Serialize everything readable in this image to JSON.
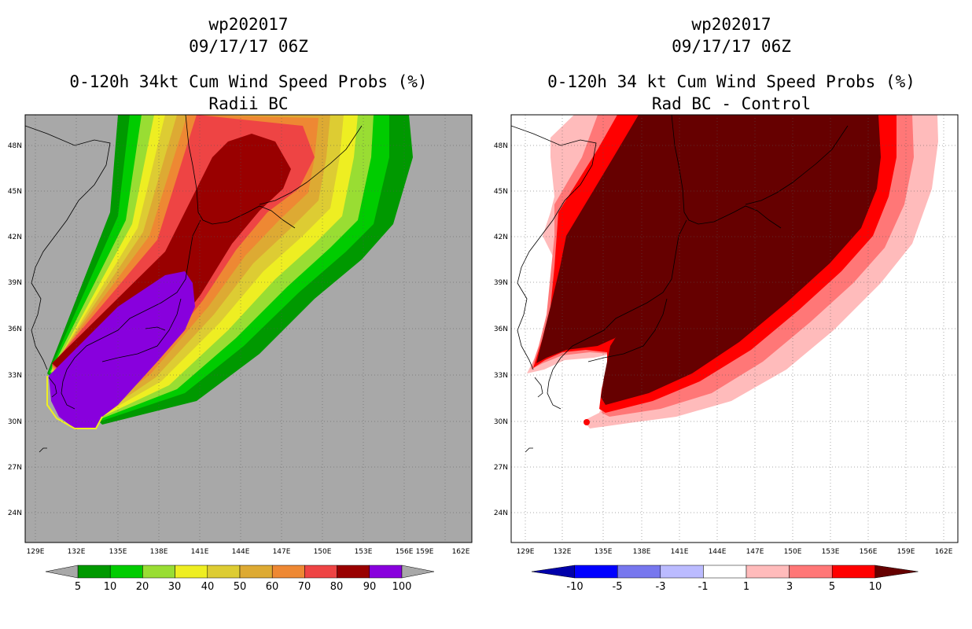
{
  "left_panel": {
    "storm_id": "wp202017",
    "datetime": "09/17/17 06Z",
    "title": "0-120h 34kt Cum Wind Speed Probs (%)",
    "subtitle": "Radii BC",
    "background_color": "#a8a8a8",
    "colorbar": {
      "labels": [
        "5",
        "10",
        "20",
        "30",
        "40",
        "50",
        "60",
        "70",
        "80",
        "90",
        "100"
      ],
      "colors": [
        "#009900",
        "#00cc00",
        "#99dd33",
        "#eeee22",
        "#ddcc33",
        "#ddaa33",
        "#ee8833",
        "#ee4444",
        "#990000",
        "#8800dd"
      ]
    }
  },
  "right_panel": {
    "storm_id": "wp202017",
    "datetime": "09/17/17 06Z",
    "title": "0-120h 34 kt Cum Wind Speed Probs (%)",
    "subtitle": "Rad BC - Control",
    "background_color": "#ffffff",
    "colorbar": {
      "labels": [
        "-10",
        "-5",
        "-3",
        "-1",
        "1",
        "3",
        "5",
        "10"
      ],
      "colors": [
        "#0000aa",
        "#0000ff",
        "#7777ee",
        "#bbbbff",
        "#ffffff",
        "#ffbbbb",
        "#ff7777",
        "#ff0000",
        "#660000"
      ]
    }
  },
  "axes": {
    "lon_labels": [
      "129E",
      "132E",
      "135E",
      "138E",
      "141E",
      "144E",
      "147E",
      "150E",
      "153E",
      "156E",
      "159E",
      "162E"
    ],
    "lat_labels": [
      "48N",
      "45N",
      "42N",
      "39N",
      "36N",
      "33N",
      "30N",
      "27N",
      "24N"
    ]
  }
}
